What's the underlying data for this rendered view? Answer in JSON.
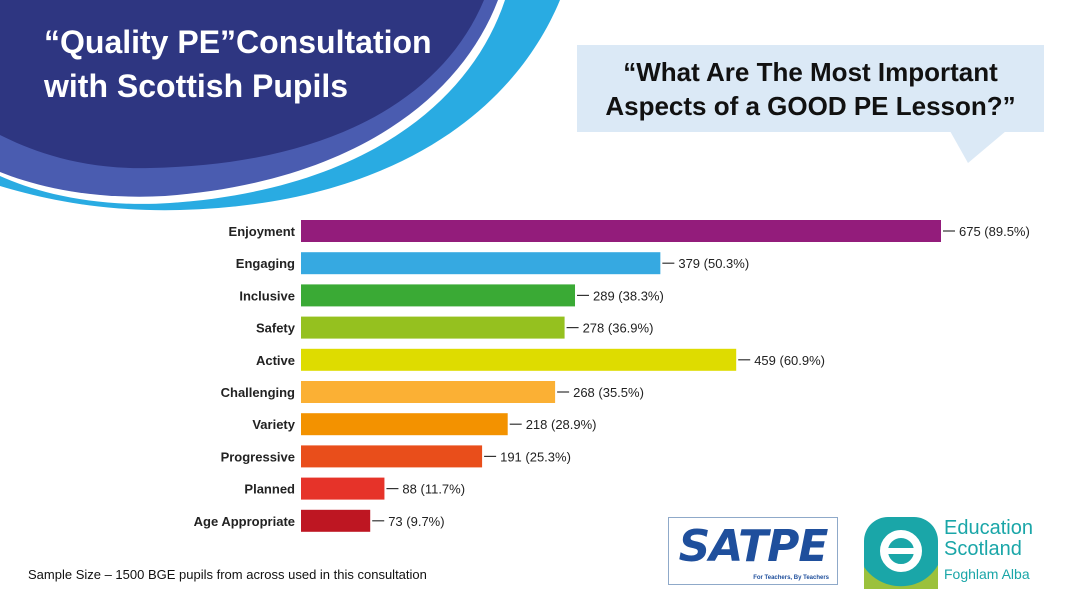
{
  "header": {
    "title": "“Quality PE”Consultation with Scottish Pupils",
    "question": "“What Are The Most Important Aspects of a GOOD PE Lesson?”"
  },
  "chart_data": {
    "type": "bar",
    "orientation": "horizontal",
    "title": "",
    "xlabel": "",
    "ylabel": "",
    "xlim": [
      0,
      675
    ],
    "grid": false,
    "categories": [
      "Enjoyment",
      "Engaging",
      "Inclusive",
      "Safety",
      "Active",
      "Challenging",
      "Variety",
      "Progressive",
      "Planned",
      "Age Appropriate"
    ],
    "values": [
      675,
      379,
      289,
      278,
      459,
      268,
      218,
      191,
      88,
      73
    ],
    "data_labels": [
      "675 (89.5%)",
      "379 (50.3%)",
      "289 (38.3%)",
      "278 (36.9%)",
      "459 (60.9%)",
      "268 (35.5%)",
      "218 (28.9%)",
      "191 (25.3%)",
      "88 (11.7%)",
      "73 (9.7%)"
    ],
    "colors": [
      "#931c7b",
      "#36a9e1",
      "#3aaa35",
      "#95c11f",
      "#dedc00",
      "#fbb034",
      "#f39200",
      "#e94e1b",
      "#e63329",
      "#be1622"
    ]
  },
  "footnote": "Sample Size – 1500 BGE pupils from across  used in this consultation",
  "logos": {
    "satpe": "SATPE",
    "satpe_tagline": "For Teachers, By Teachers",
    "education_scotland": "Education Scotland",
    "gaelic": "Foghlam Alba"
  },
  "colors": {
    "header_dark": "#2e3681",
    "header_mid": "#4356a9",
    "header_light": "#29abe2",
    "callout_bg": "#dbe9f6",
    "logo_teal": "#1aa6a8",
    "logo_green": "#9bc13c"
  }
}
